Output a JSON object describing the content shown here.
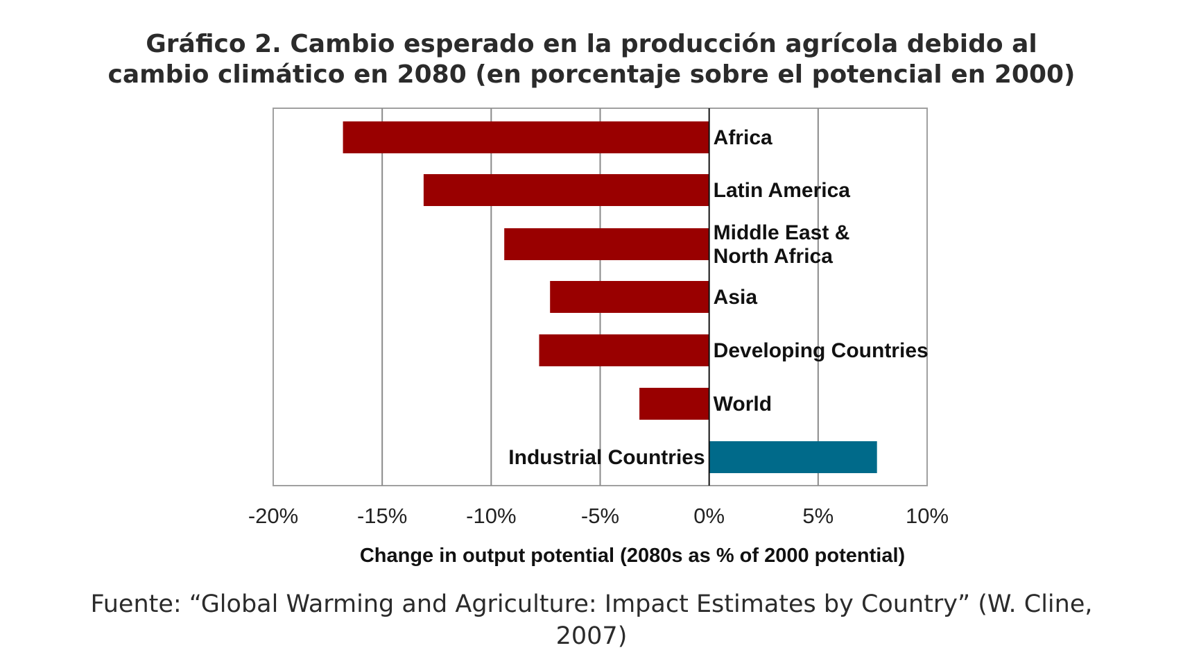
{
  "title": {
    "line1": "Gráfico 2. Cambio esperado en la producción agrícola debido al",
    "line2": "cambio climático en 2080 (en porcentaje sobre el potencial en 2000)"
  },
  "source": {
    "line1": "Fuente: “Global Warming and Agriculture: Impact Estimates by Country” (W. Cline,",
    "line2": "2007)"
  },
  "chart_data": {
    "type": "bar",
    "orientation": "horizontal",
    "categories": [
      "Africa",
      "Latin America",
      "Middle East & North Africa",
      "Asia",
      "Developing Countries",
      "World",
      "Industrial Countries"
    ],
    "category_label_lines": [
      [
        "Africa"
      ],
      [
        "Latin America"
      ],
      [
        "Middle East &",
        "North Africa"
      ],
      [
        "Asia"
      ],
      [
        "Developing Countries"
      ],
      [
        "World"
      ],
      [
        "Industrial Countries"
      ]
    ],
    "values": [
      -16.8,
      -13.1,
      -9.4,
      -7.3,
      -7.8,
      -3.2,
      7.7
    ],
    "xlabel": "Change in output potential (2080s as % of 2000 potential)",
    "ylabel": "",
    "xlim": [
      -20,
      10
    ],
    "xticks": [
      -20,
      -15,
      -10,
      -5,
      0,
      5,
      10
    ],
    "xtick_labels": [
      "-20%",
      "-15%",
      "-10%",
      "-5%",
      "0%",
      "5%",
      "10%"
    ],
    "grid": true,
    "colors": {
      "negative": "#990000",
      "positive": "#006a8a",
      "grid": "#8a8a8a",
      "frame": "#a0a0a0",
      "zero_line": "#111111"
    }
  }
}
